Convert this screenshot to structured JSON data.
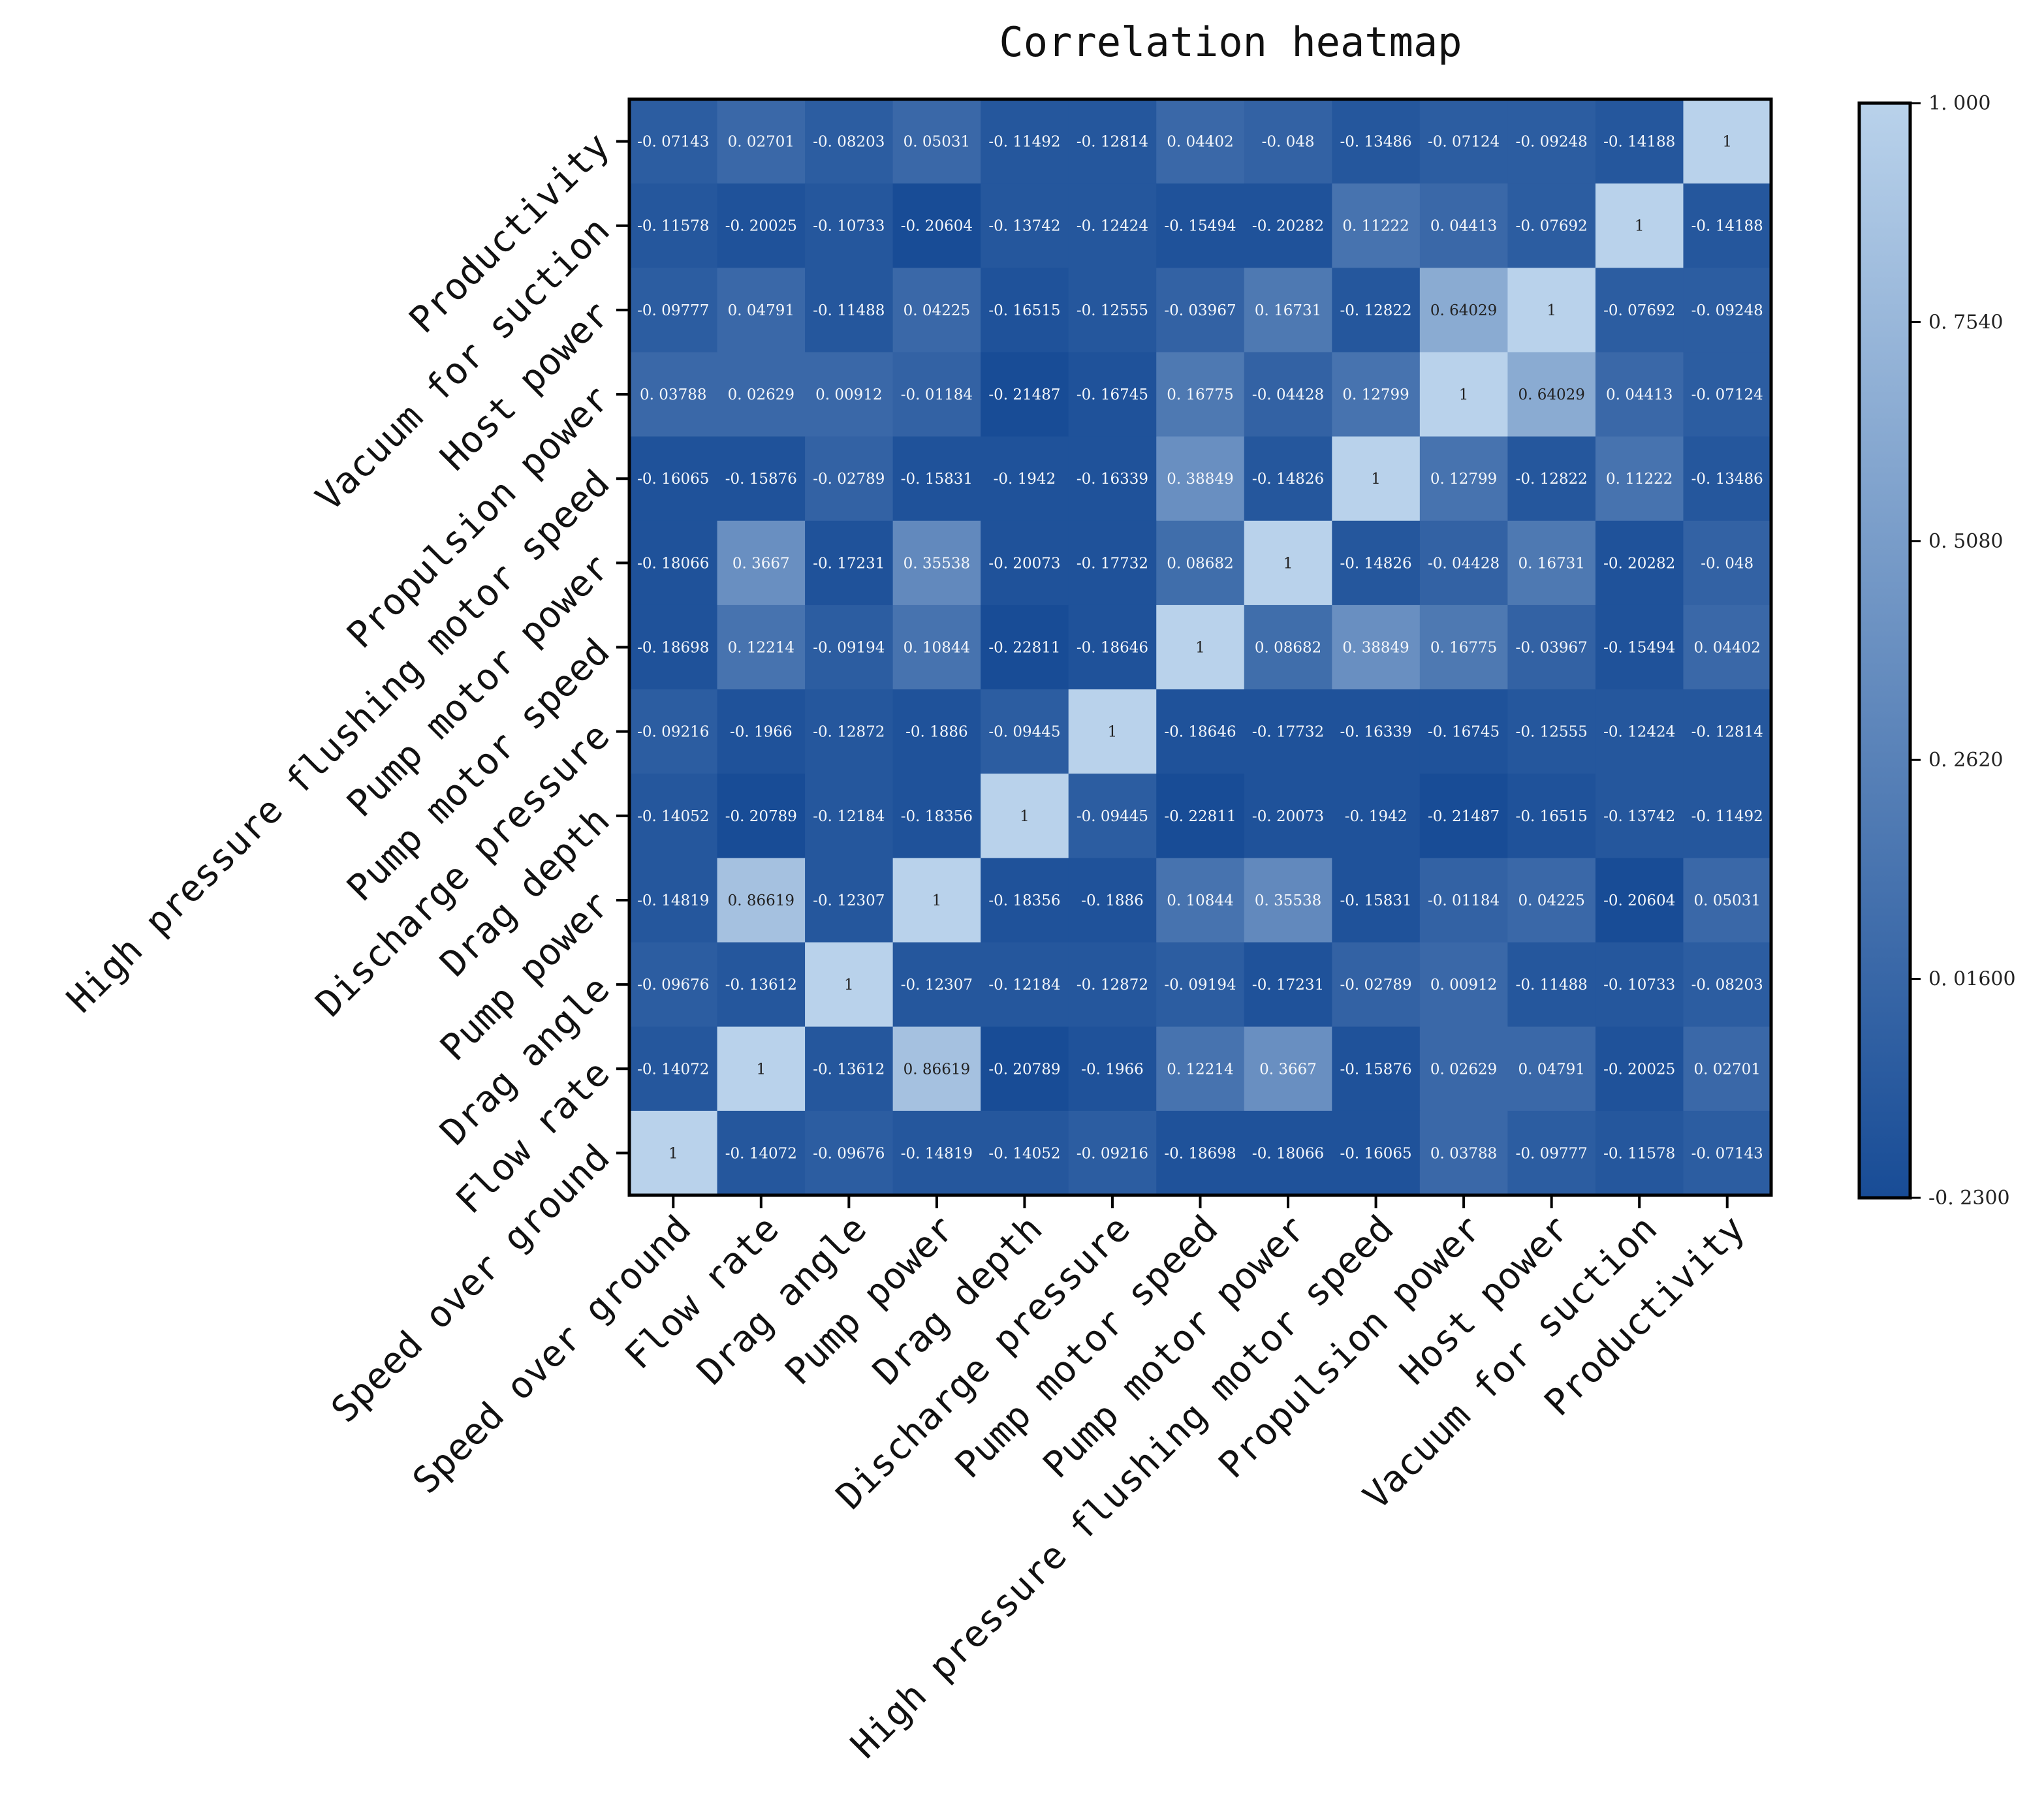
{
  "chart_data": {
    "type": "heatmap",
    "title": "Correlation heatmap",
    "variables": [
      "Speed over ground",
      "Flow rate",
      "Drag angle",
      "Pump power",
      "Drag depth",
      "Discharge pressure",
      "Pump motor speed",
      "Pump motor power",
      "High pressure flushing motor speed",
      "Propulsion power",
      "Host power",
      "Vacuum for suction",
      "Productivity"
    ],
    "matrix": [
      [
        1,
        -0.14072,
        -0.09676,
        -0.14819,
        -0.14052,
        -0.09216,
        -0.18698,
        -0.18066,
        -0.16065,
        0.03788,
        -0.09777,
        -0.11578,
        -0.07143
      ],
      [
        -0.14072,
        1,
        -0.13612,
        0.86619,
        -0.20789,
        -0.1966,
        0.12214,
        0.3667,
        -0.15876,
        0.02629,
        0.04791,
        -0.20025,
        0.02701
      ],
      [
        -0.09676,
        -0.13612,
        1,
        -0.12307,
        -0.12184,
        -0.12872,
        -0.09194,
        -0.17231,
        -0.02789,
        0.00912,
        -0.11488,
        -0.10733,
        -0.08203
      ],
      [
        -0.14819,
        0.86619,
        -0.12307,
        1,
        -0.18356,
        -0.1886,
        0.10844,
        0.35538,
        -0.15831,
        -0.01184,
        0.04225,
        -0.20604,
        0.05031
      ],
      [
        -0.14052,
        -0.20789,
        -0.12184,
        -0.18356,
        1,
        -0.09445,
        -0.22811,
        -0.20073,
        -0.1942,
        -0.21487,
        -0.16515,
        -0.13742,
        -0.11492
      ],
      [
        -0.09216,
        -0.1966,
        -0.12872,
        -0.1886,
        -0.09445,
        1,
        -0.18646,
        -0.17732,
        -0.16339,
        -0.16745,
        -0.12555,
        -0.12424,
        -0.12814
      ],
      [
        -0.18698,
        0.12214,
        -0.09194,
        0.10844,
        -0.22811,
        -0.18646,
        1,
        0.08682,
        0.38849,
        0.16775,
        -0.03967,
        -0.15494,
        0.04402
      ],
      [
        -0.18066,
        0.3667,
        -0.17231,
        0.35538,
        -0.20073,
        -0.17732,
        0.08682,
        1,
        -0.14826,
        -0.04428,
        0.16731,
        -0.20282,
        -0.048
      ],
      [
        -0.16065,
        -0.15876,
        -0.02789,
        -0.15831,
        -0.1942,
        -0.16339,
        0.38849,
        -0.14826,
        1,
        0.12799,
        -0.12822,
        0.11222,
        -0.13486
      ],
      [
        0.03788,
        0.02629,
        0.00912,
        -0.01184,
        -0.21487,
        -0.16745,
        0.16775,
        -0.04428,
        0.12799,
        1,
        0.64029,
        0.04413,
        -0.07124
      ],
      [
        -0.09777,
        0.04791,
        -0.11488,
        0.04225,
        -0.16515,
        -0.12555,
        -0.03967,
        0.16731,
        -0.12822,
        0.64029,
        1,
        -0.07692,
        -0.09248
      ],
      [
        -0.11578,
        -0.20025,
        -0.10733,
        -0.20604,
        -0.13742,
        -0.12424,
        -0.15494,
        -0.20282,
        0.11222,
        0.04413,
        -0.07692,
        1,
        -0.14188
      ],
      [
        -0.07143,
        0.02701,
        -0.08203,
        0.05031,
        -0.11492,
        -0.12814,
        0.04402,
        -0.048,
        -0.13486,
        -0.07124,
        -0.09248,
        -0.14188,
        1
      ]
    ],
    "colorbar": {
      "min": -0.23,
      "max": 1.0,
      "ticks": [
        1.0,
        0.754,
        0.508,
        0.262,
        0.016,
        -0.23
      ],
      "tick_labels": [
        "1. 000",
        "0. 7540",
        "0. 5080",
        "0. 2620",
        "0. 01600",
        "-0. 2300"
      ]
    },
    "colors": {
      "low": "#184c96",
      "high": "#b9d2eb",
      "label_dark": "#222222",
      "label_light": "#f4f7fb"
    }
  }
}
